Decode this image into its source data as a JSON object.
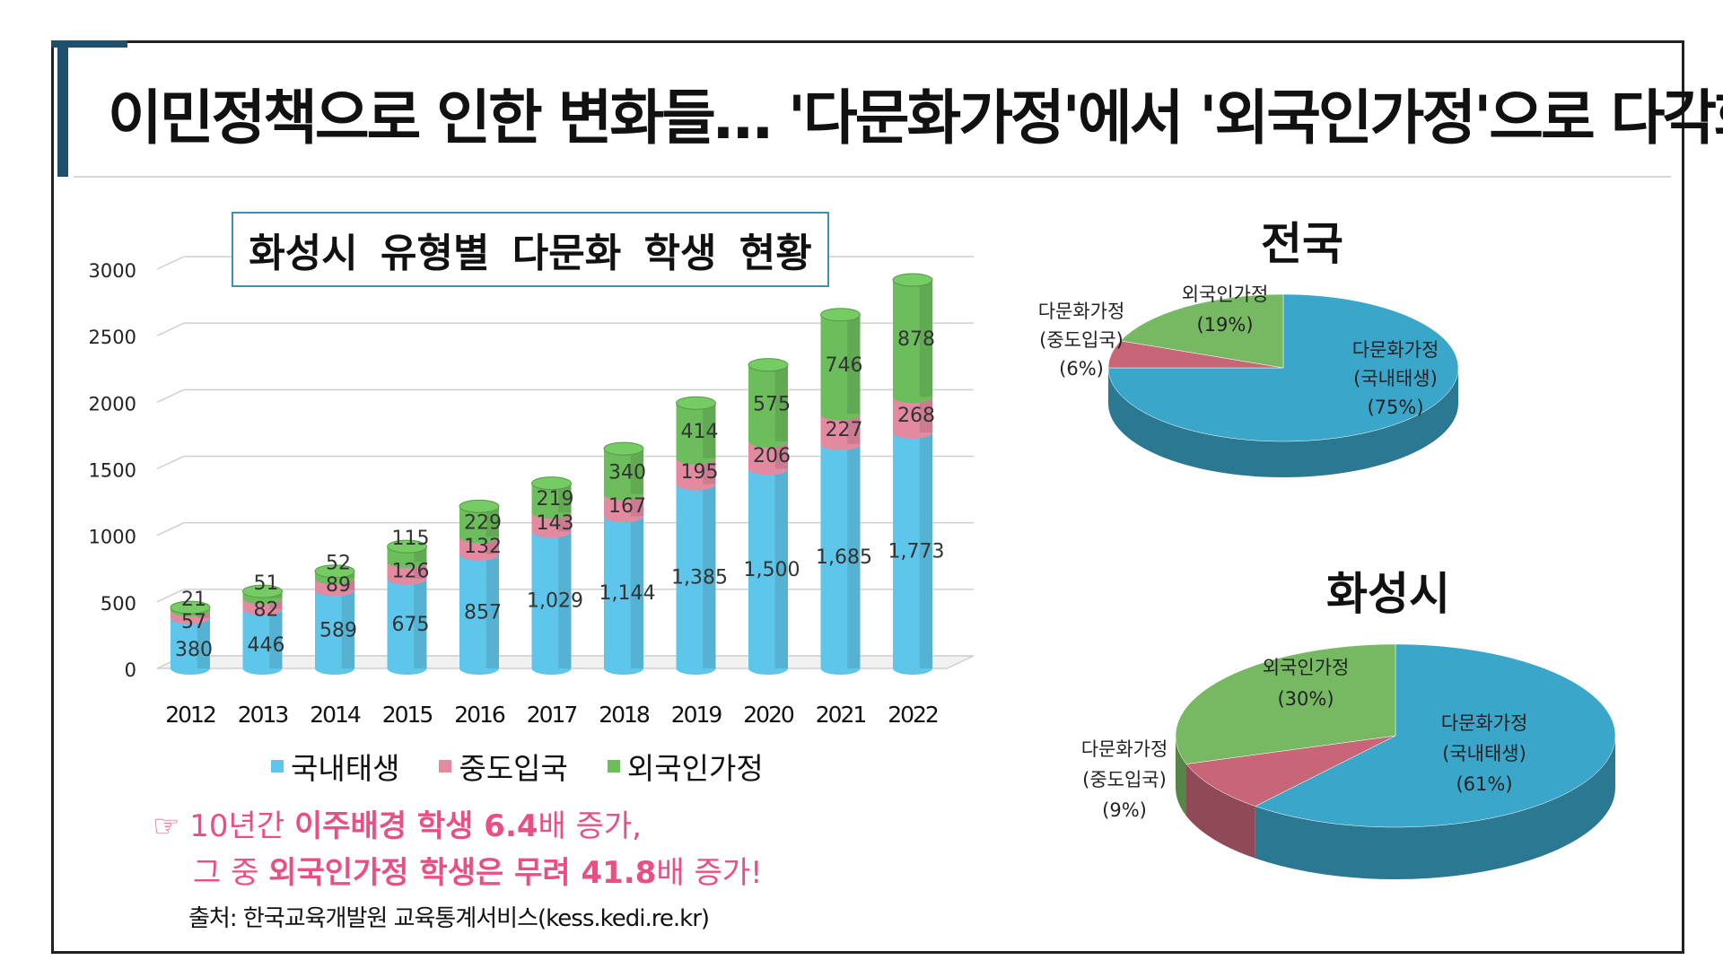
{
  "title": "이민정책으로 인한 변화들… '다문화가정'에서 '외국인가정'으로 다각화",
  "chart_data": [
    {
      "type": "bar",
      "stacked": true,
      "title": "화성시 유형별 다문화 학생 현황",
      "categories": [
        "2012",
        "2013",
        "2014",
        "2015",
        "2016",
        "2017",
        "2018",
        "2019",
        "2020",
        "2021",
        "2022"
      ],
      "series": [
        {
          "name": "국내태생",
          "values": [
            380,
            446,
            589,
            675,
            857,
            1029,
            1144,
            1385,
            1500,
            1685,
            1773
          ],
          "labels": [
            "380",
            "446",
            "589",
            "675",
            "857",
            "1,029",
            "1,144",
            "1,385",
            "1,500",
            "1,685",
            "1,773"
          ],
          "color": "#5ec6ea"
        },
        {
          "name": "중도입국",
          "values": [
            57,
            82,
            89,
            126,
            132,
            143,
            167,
            195,
            206,
            227,
            268
          ],
          "labels": [
            "57",
            "82",
            "89",
            "126",
            "132",
            "143",
            "167",
            "195",
            "206",
            "227",
            "268"
          ],
          "color": "#e38aa1"
        },
        {
          "name": "외국인가정",
          "values": [
            21,
            51,
            52,
            115,
            229,
            219,
            340,
            414,
            575,
            746,
            878
          ],
          "labels": [
            "21",
            "51",
            "52",
            "115",
            "229",
            "219",
            "340",
            "414",
            "575",
            "746",
            "878"
          ],
          "color": "#6cbd5c"
        }
      ],
      "yticks": [
        "0",
        "500",
        "1000",
        "1500",
        "2000",
        "2500",
        "3000"
      ],
      "ylim": [
        0,
        3000
      ],
      "grid": true,
      "legend": "bottom"
    },
    {
      "type": "pie",
      "title": "전국",
      "slices": [
        {
          "label": "다문화가정",
          "sub": "(국내태생)",
          "pct": "(75%)",
          "value": 75,
          "color": "#3aa6c9"
        },
        {
          "label": "다문화가정",
          "sub": "(중도입국)",
          "pct": "(6%)",
          "value": 6,
          "color": "#c86678"
        },
        {
          "label": "외국인가정",
          "sub": "",
          "pct": "(19%)",
          "value": 19,
          "color": "#77b963"
        }
      ]
    },
    {
      "type": "pie",
      "title": "화성시",
      "slices": [
        {
          "label": "다문화가정",
          "sub": "(국내태생)",
          "pct": "(61%)",
          "value": 61,
          "color": "#3aa6c9"
        },
        {
          "label": "다문화가정",
          "sub": "(중도입국)",
          "pct": "(9%)",
          "value": 9,
          "color": "#c86678"
        },
        {
          "label": "외국인가정",
          "sub": "",
          "pct": "(30%)",
          "value": 30,
          "color": "#77b963"
        }
      ]
    }
  ],
  "note": {
    "marker": "☞",
    "line1_a": "10년간 ",
    "line1_b": "이주배경 학생 6.4",
    "line1_c": "배 증가,",
    "line2_a": "그 중 ",
    "line2_b": "외국인가정 학생은 무려 41.8",
    "line2_c": "배 증가!"
  },
  "source": "출처: 한국교육개발원 교육통계서비스(kess.kedi.re.kr)"
}
